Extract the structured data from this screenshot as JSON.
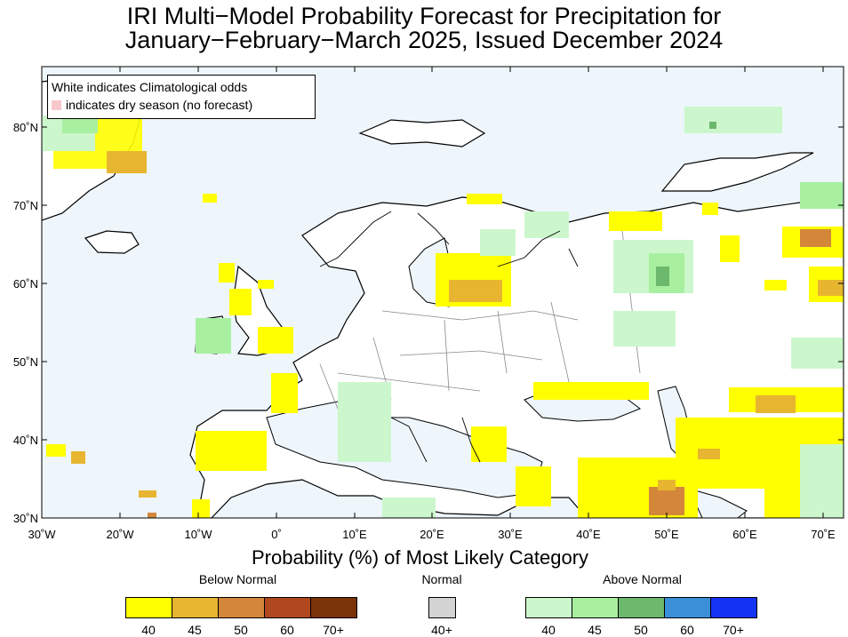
{
  "title": {
    "line1": "IRI Multi−Model Probability Forecast for Precipitation for",
    "line2": "January−February−March 2025, Issued December 2024"
  },
  "map": {
    "region": "Europe",
    "ocean_color": "#eef6fc",
    "land_color": "#ffffff",
    "lat_labels": [
      "80˚N",
      "70˚N",
      "60˚N",
      "50˚N",
      "40˚N",
      "30˚N"
    ],
    "lon_labels": [
      "30˚W",
      "20˚W",
      "10˚W",
      "0˚",
      "10˚E",
      "20˚E",
      "30˚E",
      "40˚E",
      "50˚E",
      "60˚E",
      "70˚E"
    ]
  },
  "note": {
    "line1": "White indicates Climatological odds",
    "line2": "indicates dry season (no forecast)",
    "dry_color": "#f9c8cc"
  },
  "legend": {
    "heading": "Probability (%) of Most Likely Category",
    "below": {
      "label": "Below Normal",
      "colors": [
        "#ffff00",
        "#e8b530",
        "#d4873a",
        "#b0471e",
        "#7a3208"
      ],
      "ticks": [
        "40",
        "45",
        "50",
        "60",
        "70+"
      ]
    },
    "normal": {
      "label": "Normal",
      "colors": [
        "#d3d3d3"
      ],
      "ticks": [
        "40+"
      ]
    },
    "above": {
      "label": "Above Normal",
      "colors": [
        "#ccf7cc",
        "#a8f0a0",
        "#6cb86c",
        "#3a8fd8",
        "#1433f5"
      ],
      "ticks": [
        "40",
        "45",
        "50",
        "60",
        "70+"
      ]
    }
  }
}
